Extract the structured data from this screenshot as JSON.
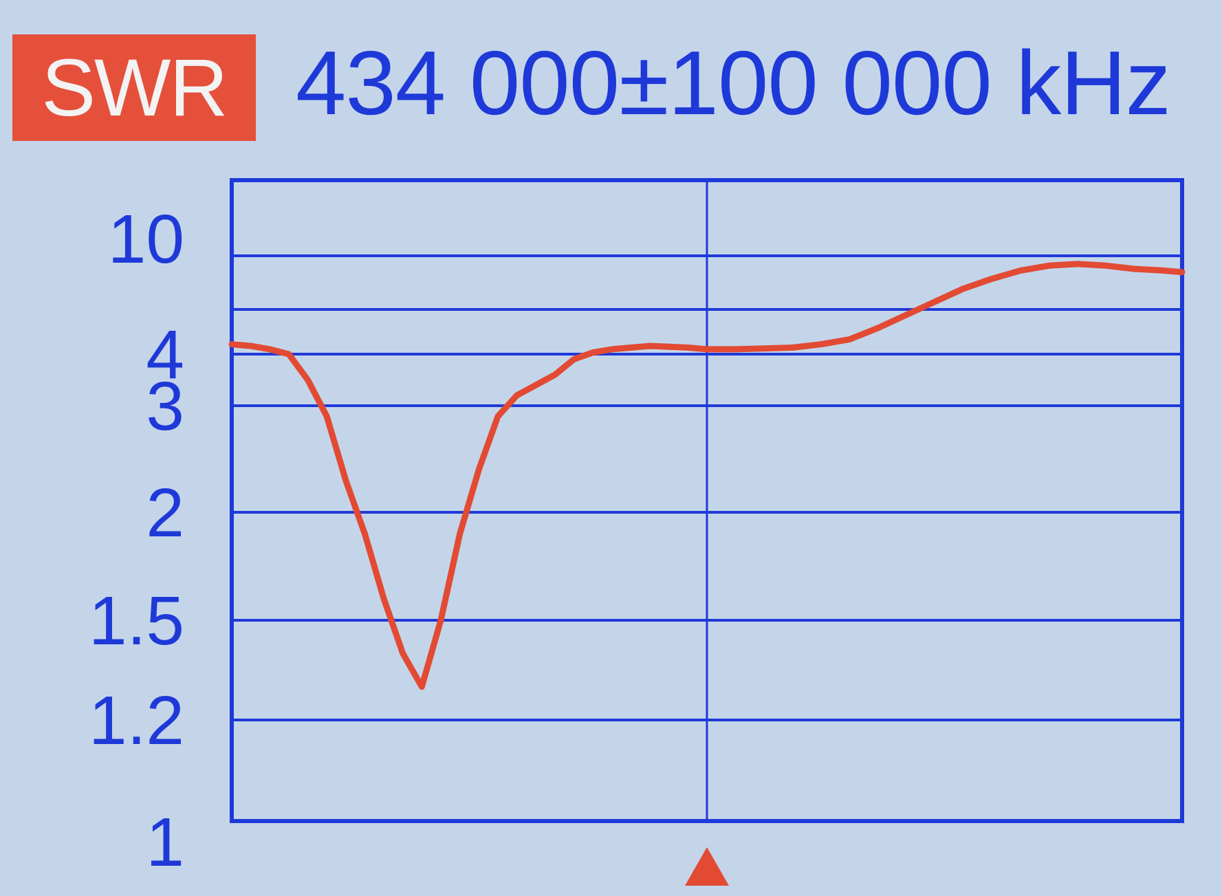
{
  "header": {
    "mode": "SWR",
    "frequency": "434 000±100 000 kHz"
  },
  "colors": {
    "background": "#c4d5ea",
    "grid": "#1e39d8",
    "trace": "#e24a33",
    "badge": "#e5503b",
    "marker": "#e24a33"
  },
  "chart_data": {
    "type": "line",
    "title": "",
    "xlabel": "",
    "ylabel": "",
    "x_range_mhz": [
      334,
      534
    ],
    "center_mhz": 434,
    "y_scale": "nonlinear-swr",
    "y_ticks": [
      "10",
      "4",
      "3",
      "2",
      "1.5",
      "1.2",
      "1"
    ],
    "grid": true,
    "center_marker": "triangle-below-x-axis",
    "series": [
      {
        "x": [
          334,
          338,
          342,
          346,
          350,
          354,
          358,
          362,
          366,
          370,
          374,
          378,
          382,
          386,
          390,
          394,
          398,
          402,
          406,
          410,
          414,
          418,
          422,
          426,
          430,
          434,
          440,
          446,
          452,
          458,
          464,
          470,
          476,
          482,
          488,
          494,
          500,
          506,
          512,
          518,
          524,
          530,
          534
        ],
        "y": [
          4.6,
          4.5,
          4.3,
          4.0,
          3.5,
          2.9,
          2.3,
          1.9,
          1.6,
          1.4,
          1.3,
          1.5,
          1.9,
          2.4,
          2.9,
          3.2,
          3.4,
          3.6,
          3.9,
          4.1,
          4.3,
          4.4,
          4.5,
          4.45,
          4.4,
          4.3,
          4.3,
          4.35,
          4.4,
          4.6,
          4.9,
          5.6,
          6.4,
          7.2,
          8.0,
          8.6,
          9.1,
          9.4,
          9.5,
          9.4,
          9.2,
          9.1,
          9.0
        ]
      }
    ]
  }
}
